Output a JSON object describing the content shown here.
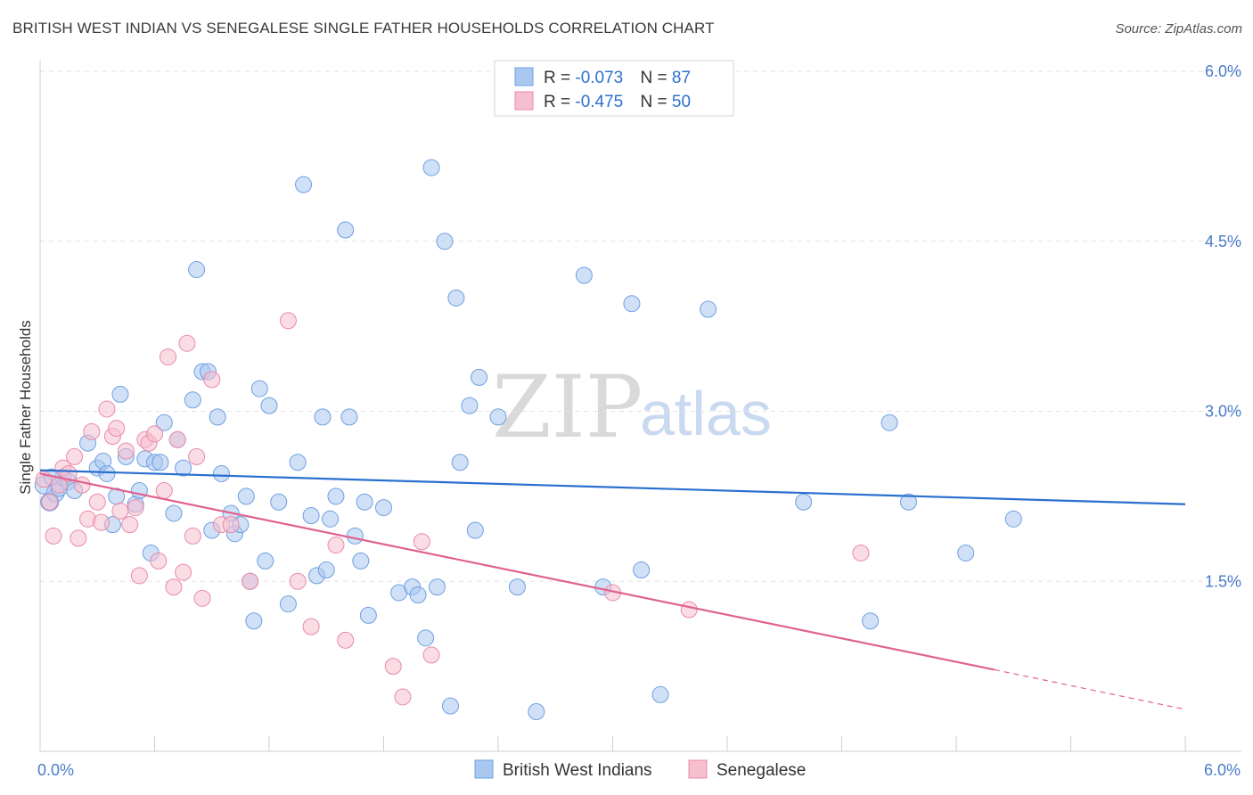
{
  "title": "BRITISH WEST INDIAN VS SENEGALESE SINGLE FATHER HOUSEHOLDS CORRELATION CHART",
  "source": "Source: ZipAtlas.com",
  "watermark": {
    "zip": "ZIP",
    "atlas": "atlas"
  },
  "legend": {
    "rows": [
      {
        "r_label": "R = ",
        "r_value": "-0.073",
        "n_label": "N = ",
        "n_value": "87",
        "color": "#a9c8f0",
        "stroke": "#6f9fe0"
      },
      {
        "r_label": "R = ",
        "r_value": "-0.475",
        "n_label": "N = ",
        "n_value": "50",
        "color": "#f6bfd0",
        "stroke": "#e98aa8"
      }
    ]
  },
  "chart_data": {
    "type": "scatter",
    "title": "BRITISH WEST INDIAN VS SENEGALESE SINGLE FATHER HOUSEHOLDS CORRELATION CHART",
    "xlabel": "",
    "ylabel": "Single Father Households",
    "xlim": [
      0,
      6.0
    ],
    "ylim": [
      0,
      6.0
    ],
    "x_tick_labels": [
      "0.0%",
      "6.0%"
    ],
    "y_tick_labels": [
      "1.5%",
      "3.0%",
      "4.5%",
      "6.0%"
    ],
    "y_ticks": [
      1.5,
      3.0,
      4.5,
      6.0
    ],
    "grid": "horizontal dashed",
    "legend_position": "top-center",
    "series": [
      {
        "name": "British West Indians",
        "color": "#a9c8f0",
        "stroke": "#6f9fe0",
        "line_color": "#2a6fcf",
        "trend": {
          "x": [
            0.0,
            6.0
          ],
          "y": [
            2.48,
            2.18
          ]
        },
        "points": [
          [
            0.02,
            2.35
          ],
          [
            0.05,
            2.2
          ],
          [
            0.08,
            2.28
          ],
          [
            0.1,
            2.32
          ],
          [
            0.12,
            2.42
          ],
          [
            0.15,
            2.38
          ],
          [
            0.25,
            2.72
          ],
          [
            0.3,
            2.5
          ],
          [
            0.33,
            2.56
          ],
          [
            0.38,
            2.0
          ],
          [
            0.4,
            2.25
          ],
          [
            0.42,
            3.15
          ],
          [
            0.45,
            2.6
          ],
          [
            0.5,
            2.18
          ],
          [
            0.52,
            2.3
          ],
          [
            0.55,
            2.58
          ],
          [
            0.58,
            1.75
          ],
          [
            0.6,
            2.55
          ],
          [
            0.63,
            2.55
          ],
          [
            0.65,
            2.9
          ],
          [
            0.7,
            2.1
          ],
          [
            0.72,
            2.75
          ],
          [
            0.75,
            2.5
          ],
          [
            0.8,
            3.1
          ],
          [
            0.82,
            4.25
          ],
          [
            0.85,
            3.35
          ],
          [
            0.88,
            3.35
          ],
          [
            0.9,
            1.95
          ],
          [
            0.93,
            2.95
          ],
          [
            0.95,
            2.45
          ],
          [
            1.0,
            2.1
          ],
          [
            1.02,
            1.92
          ],
          [
            1.05,
            2.0
          ],
          [
            1.08,
            2.25
          ],
          [
            1.1,
            1.5
          ],
          [
            1.12,
            1.15
          ],
          [
            1.15,
            3.2
          ],
          [
            1.18,
            1.68
          ],
          [
            1.2,
            3.05
          ],
          [
            1.25,
            2.2
          ],
          [
            1.3,
            1.3
          ],
          [
            1.35,
            2.55
          ],
          [
            1.38,
            5.0
          ],
          [
            1.42,
            2.08
          ],
          [
            1.45,
            1.55
          ],
          [
            1.48,
            2.95
          ],
          [
            1.5,
            1.6
          ],
          [
            1.52,
            2.05
          ],
          [
            1.55,
            2.25
          ],
          [
            1.6,
            4.6
          ],
          [
            1.62,
            2.95
          ],
          [
            1.65,
            1.9
          ],
          [
            1.68,
            1.68
          ],
          [
            1.7,
            2.2
          ],
          [
            1.72,
            1.2
          ],
          [
            1.8,
            2.15
          ],
          [
            1.88,
            1.4
          ],
          [
            1.95,
            1.45
          ],
          [
            1.98,
            1.38
          ],
          [
            2.02,
            1.0
          ],
          [
            2.05,
            5.15
          ],
          [
            2.08,
            1.45
          ],
          [
            2.12,
            4.5
          ],
          [
            2.15,
            0.4
          ],
          [
            2.18,
            4.0
          ],
          [
            2.2,
            2.55
          ],
          [
            2.25,
            3.05
          ],
          [
            2.28,
            1.95
          ],
          [
            2.3,
            3.3
          ],
          [
            2.4,
            2.95
          ],
          [
            2.5,
            1.45
          ],
          [
            2.6,
            0.35
          ],
          [
            2.85,
            4.2
          ],
          [
            2.95,
            1.45
          ],
          [
            3.1,
            3.95
          ],
          [
            3.15,
            1.6
          ],
          [
            3.25,
            0.5
          ],
          [
            3.5,
            3.9
          ],
          [
            4.0,
            2.2
          ],
          [
            4.35,
            1.15
          ],
          [
            4.45,
            2.9
          ],
          [
            4.55,
            2.2
          ],
          [
            4.85,
            1.75
          ],
          [
            5.1,
            2.05
          ],
          [
            0.06,
            2.42
          ],
          [
            0.18,
            2.3
          ],
          [
            0.35,
            2.45
          ]
        ]
      },
      {
        "name": "Senegalese",
        "color": "#f6bfd0",
        "stroke": "#e98aa8",
        "line_color": "#e0628f",
        "trend": {
          "x": [
            0.0,
            5.0
          ],
          "y": [
            2.45,
            0.72
          ],
          "dashed_to": [
            6.0,
            0.37
          ]
        },
        "points": [
          [
            0.02,
            2.4
          ],
          [
            0.05,
            2.2
          ],
          [
            0.07,
            1.9
          ],
          [
            0.1,
            2.35
          ],
          [
            0.12,
            2.5
          ],
          [
            0.15,
            2.45
          ],
          [
            0.18,
            2.6
          ],
          [
            0.2,
            1.88
          ],
          [
            0.22,
            2.35
          ],
          [
            0.25,
            2.05
          ],
          [
            0.27,
            2.82
          ],
          [
            0.3,
            2.2
          ],
          [
            0.32,
            2.02
          ],
          [
            0.35,
            3.02
          ],
          [
            0.38,
            2.78
          ],
          [
            0.4,
            2.85
          ],
          [
            0.42,
            2.12
          ],
          [
            0.45,
            2.65
          ],
          [
            0.47,
            2.0
          ],
          [
            0.5,
            2.15
          ],
          [
            0.52,
            1.55
          ],
          [
            0.55,
            2.75
          ],
          [
            0.57,
            2.72
          ],
          [
            0.6,
            2.8
          ],
          [
            0.62,
            1.68
          ],
          [
            0.65,
            2.3
          ],
          [
            0.67,
            3.48
          ],
          [
            0.7,
            1.45
          ],
          [
            0.72,
            2.75
          ],
          [
            0.75,
            1.58
          ],
          [
            0.77,
            3.6
          ],
          [
            0.8,
            1.9
          ],
          [
            0.82,
            2.6
          ],
          [
            0.85,
            1.35
          ],
          [
            0.9,
            3.28
          ],
          [
            0.95,
            2.0
          ],
          [
            1.0,
            2.0
          ],
          [
            1.1,
            1.5
          ],
          [
            1.3,
            3.8
          ],
          [
            1.35,
            1.5
          ],
          [
            1.42,
            1.1
          ],
          [
            1.55,
            1.82
          ],
          [
            1.6,
            0.98
          ],
          [
            1.85,
            0.75
          ],
          [
            1.9,
            0.48
          ],
          [
            2.0,
            1.85
          ],
          [
            2.05,
            0.85
          ],
          [
            3.0,
            1.4
          ],
          [
            3.4,
            1.25
          ],
          [
            4.3,
            1.75
          ]
        ]
      }
    ]
  }
}
